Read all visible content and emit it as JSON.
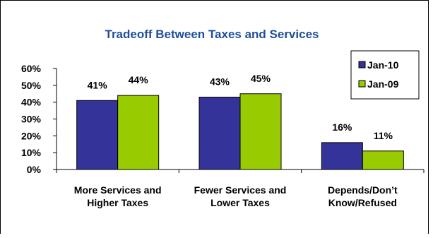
{
  "chart_data": {
    "type": "bar",
    "title": "Tradeoff Between Taxes and Services",
    "categories": [
      [
        "More Services and",
        "Higher Taxes"
      ],
      [
        "Fewer Services and",
        "Lower Taxes"
      ],
      [
        "Depends/Don’t",
        "Know/Refused"
      ]
    ],
    "series": [
      {
        "name": "Jan-10",
        "values": [
          41,
          43,
          16
        ],
        "labels": [
          "41%",
          "43%",
          "16%"
        ],
        "color": "#333399"
      },
      {
        "name": "Jan-09",
        "values": [
          44,
          45,
          11
        ],
        "labels": [
          "44%",
          "45%",
          "11%"
        ],
        "color": "#99CC00"
      }
    ],
    "yticks": [
      "0%",
      "10%",
      "20%",
      "30%",
      "40%",
      "50%",
      "60%"
    ],
    "ylim": [
      0,
      60
    ],
    "xlabel": "",
    "ylabel": "",
    "grid": false,
    "legend_position": "top-right",
    "title_color": "#1F4E9B"
  }
}
